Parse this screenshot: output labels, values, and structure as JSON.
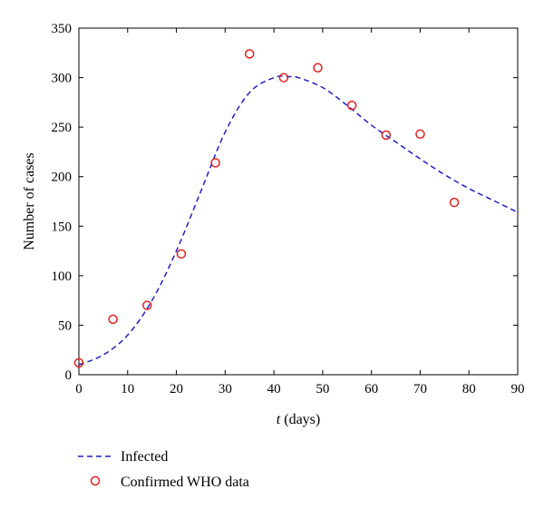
{
  "chart_data": {
    "type": "scatter",
    "xlabel_var": "t",
    "xlabel_rest": " (days)",
    "ylabel": "Number of cases",
    "xlim": [
      0,
      90
    ],
    "ylim": [
      0,
      350
    ],
    "xticks": [
      0,
      10,
      20,
      30,
      40,
      50,
      60,
      70,
      80,
      90
    ],
    "yticks": [
      0,
      50,
      100,
      150,
      200,
      250,
      300,
      350
    ],
    "grid": false,
    "legend_position": "bottom-left",
    "series": [
      {
        "name": "Infected",
        "kind": "line",
        "style": "dashed",
        "color": "#2020c0",
        "x": [
          0,
          5,
          10,
          15,
          20,
          25,
          30,
          35,
          40,
          43,
          45,
          50,
          55,
          60,
          65,
          70,
          75,
          80,
          85,
          90
        ],
        "y": [
          10,
          20,
          40,
          75,
          125,
          185,
          245,
          285,
          300,
          301,
          300,
          290,
          272,
          252,
          235,
          218,
          202,
          188,
          176,
          164
        ]
      },
      {
        "name": "Confirmed WHO data",
        "kind": "scatter",
        "marker": "open-circle",
        "color": "#e02020",
        "x": [
          0,
          7,
          14,
          21,
          28,
          35,
          42,
          49,
          56,
          63,
          70,
          77
        ],
        "y": [
          12,
          56,
          70,
          122,
          214,
          324,
          300,
          310,
          272,
          242,
          243,
          174
        ]
      }
    ]
  }
}
